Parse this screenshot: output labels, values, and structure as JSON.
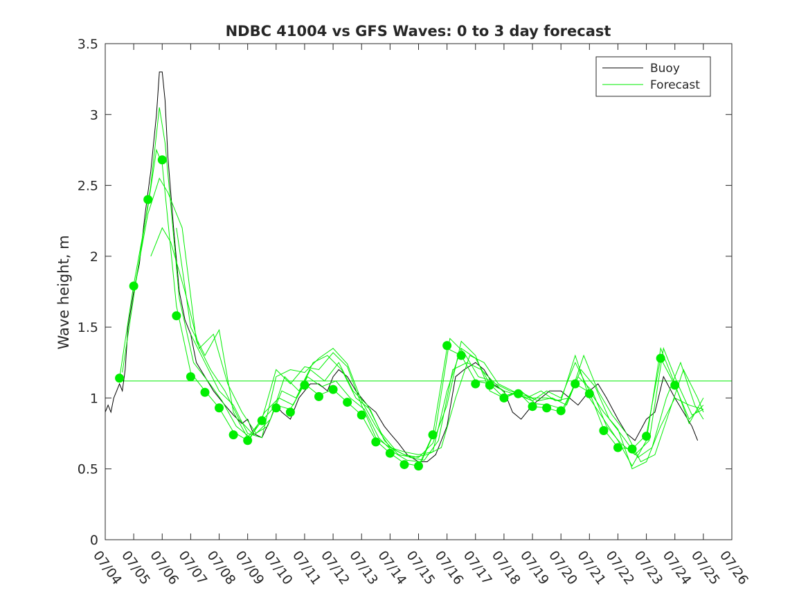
{
  "chart_data": {
    "type": "line",
    "title": "NDBC 41004 vs GFS Waves: 0 to 3 day forecast",
    "xlabel": "",
    "ylabel": "Wave height, m",
    "x_range": [
      "07/04",
      "07/26"
    ],
    "ylim": [
      0,
      3.5
    ],
    "yticks": [
      "0",
      "0.5",
      "1",
      "1.5",
      "2",
      "2.5",
      "3",
      "3.5"
    ],
    "xticks": [
      "07/04",
      "07/05",
      "07/06",
      "07/07",
      "07/08",
      "07/09",
      "07/10",
      "07/11",
      "07/12",
      "07/13",
      "07/14",
      "07/15",
      "07/16",
      "07/17",
      "07/18",
      "07/19",
      "07/20",
      "07/21",
      "07/22",
      "07/23",
      "07/24",
      "07/25",
      "07/26"
    ],
    "grid": false,
    "legend": {
      "position": "top-right",
      "entries": [
        "Buoy",
        "Forecast"
      ]
    },
    "colors": {
      "buoy": "#000000",
      "forecast": "#00ee00",
      "axes": "#262626"
    },
    "reference_line": {
      "y": 1.12,
      "color": "#00ee00"
    },
    "buoy": {
      "name": "Buoy",
      "x_days": [
        0,
        0.1,
        0.2,
        0.3,
        0.4,
        0.5,
        0.6,
        0.7,
        0.8,
        1.0,
        1.2,
        1.4,
        1.6,
        1.8,
        1.9,
        2.0,
        2.1,
        2.2,
        2.4,
        2.6,
        2.8,
        3.0,
        3.2,
        3.5,
        3.8,
        4.0,
        4.2,
        4.5,
        4.8,
        5.0,
        5.2,
        5.5,
        5.8,
        6.0,
        6.2,
        6.5,
        6.8,
        7.0,
        7.2,
        7.5,
        7.8,
        8.0,
        8.2,
        8.5,
        8.8,
        9.0,
        9.2,
        9.5,
        9.8,
        10.0,
        10.3,
        10.6,
        11.0,
        11.3,
        11.6,
        12.0,
        12.3,
        12.6,
        13.0,
        13.3,
        13.6,
        14.0,
        14.3,
        14.6,
        15.0,
        15.3,
        15.6,
        16.0,
        16.3,
        16.6,
        17.0,
        17.3,
        17.6,
        18.0,
        18.3,
        18.6,
        19.0,
        19.3,
        19.6,
        20.0,
        20.3,
        20.6,
        20.8
      ],
      "values": [
        0.9,
        0.95,
        0.9,
        1.0,
        1.05,
        1.1,
        1.05,
        1.2,
        1.5,
        1.75,
        1.95,
        2.3,
        2.6,
        3.0,
        3.3,
        3.3,
        3.1,
        2.7,
        2.2,
        1.75,
        1.55,
        1.45,
        1.25,
        1.15,
        1.05,
        1.0,
        0.95,
        0.88,
        0.82,
        0.85,
        0.75,
        0.72,
        0.85,
        0.95,
        0.9,
        0.85,
        1.0,
        1.05,
        1.1,
        1.1,
        1.05,
        1.15,
        1.2,
        1.15,
        1.05,
        1.0,
        0.95,
        0.9,
        0.8,
        0.75,
        0.68,
        0.6,
        0.55,
        0.55,
        0.6,
        0.8,
        1.15,
        1.2,
        1.25,
        1.2,
        1.1,
        1.05,
        0.9,
        0.85,
        0.95,
        1.0,
        1.05,
        1.05,
        1.0,
        0.95,
        1.05,
        1.1,
        1.0,
        0.85,
        0.75,
        0.7,
        0.85,
        0.9,
        1.15,
        1.0,
        0.9,
        0.8,
        0.7
      ]
    },
    "forecast": {
      "name": "Forecast",
      "points_x_days": [
        0.5,
        1.0,
        1.5,
        2.0,
        2.5,
        3.0,
        3.5,
        4.0,
        4.5,
        5.0,
        5.5,
        6.0,
        6.5,
        7.0,
        7.5,
        8.0,
        8.5,
        9.0,
        9.5,
        10.0,
        10.5,
        11.0,
        11.5,
        12.0,
        12.5,
        13.0,
        13.5,
        14.0,
        14.5,
        15.0,
        15.5,
        16.0,
        16.5,
        17.0,
        17.5,
        18.0,
        18.5,
        19.0,
        19.5,
        20.0
      ],
      "points": [
        1.14,
        1.79,
        2.4,
        2.68,
        1.58,
        1.15,
        1.04,
        0.93,
        0.74,
        0.7,
        0.84,
        0.93,
        0.9,
        1.09,
        1.01,
        1.06,
        0.97,
        0.88,
        0.69,
        0.61,
        0.53,
        0.52,
        0.74,
        1.37,
        1.3,
        1.1,
        1.09,
        1.0,
        1.03,
        0.94,
        0.93,
        0.91,
        1.1,
        1.03,
        0.77,
        0.65,
        0.64,
        0.73,
        1.28,
        1.09
      ],
      "runs": [
        {
          "x_days": [
            0.5,
            1.0,
            1.5,
            1.8,
            2.0,
            2.5,
            3.0,
            3.5,
            4.0,
            4.5,
            5.0,
            5.5,
            6.0,
            6.5,
            7.0,
            7.5,
            8.0,
            8.5,
            9.0,
            9.5,
            10.0,
            10.5,
            11.0,
            11.5,
            12.0,
            12.5,
            13.0,
            13.5,
            14.0,
            14.5,
            15.0,
            15.5,
            16.0,
            16.5,
            17.0,
            17.5,
            18.0,
            18.5,
            19.0,
            19.5,
            20.0,
            20.5,
            21.0
          ],
          "values": [
            1.14,
            1.8,
            2.35,
            2.75,
            2.65,
            1.65,
            1.18,
            1.05,
            0.93,
            0.76,
            0.7,
            0.84,
            0.95,
            0.92,
            1.1,
            1.02,
            1.06,
            0.97,
            0.88,
            0.7,
            0.61,
            0.54,
            0.52,
            0.74,
            1.35,
            1.3,
            1.12,
            1.1,
            1.0,
            1.04,
            0.94,
            0.93,
            0.9,
            1.1,
            1.04,
            0.78,
            0.65,
            0.64,
            0.74,
            1.28,
            1.09,
            0.85,
            0.95
          ]
        },
        {
          "x_days": [
            0.6,
            1.1,
            1.6,
            1.9,
            2.1,
            2.6,
            3.1,
            3.6,
            4.1,
            4.6,
            5.1,
            5.6,
            6.1,
            6.6,
            7.1,
            7.6,
            8.1,
            8.6,
            9.1,
            9.6,
            10.1,
            10.6,
            11.1,
            11.6,
            12.1,
            12.6,
            13.1,
            13.6,
            14.1,
            14.6,
            15.1,
            15.6,
            16.1,
            16.6,
            17.1,
            17.6,
            18.1,
            18.6,
            19.1,
            19.6,
            20.1,
            20.6,
            21.0
          ],
          "values": [
            1.18,
            1.85,
            2.5,
            3.05,
            2.8,
            1.7,
            1.25,
            1.12,
            0.98,
            0.8,
            0.72,
            0.9,
            1.0,
            0.95,
            1.15,
            1.08,
            1.12,
            1.0,
            0.92,
            0.72,
            0.62,
            0.56,
            0.55,
            0.78,
            1.42,
            1.32,
            1.15,
            1.12,
            1.02,
            1.05,
            0.96,
            0.95,
            0.92,
            1.15,
            1.05,
            0.8,
            0.68,
            0.6,
            0.7,
            1.35,
            1.1,
            0.88,
            0.92
          ]
        },
        {
          "x_days": [
            1.0,
            1.5,
            1.9,
            2.2,
            2.7,
            3.2,
            3.7,
            4.2,
            4.7,
            5.2,
            5.7,
            6.2,
            6.7,
            7.2,
            7.7,
            8.2,
            8.7,
            9.2,
            9.7,
            10.2,
            10.7,
            11.2,
            11.7,
            12.2,
            12.7,
            13.2,
            13.7,
            14.2,
            14.7,
            15.2,
            15.7,
            16.2,
            16.7,
            17.2,
            17.7,
            18.2,
            18.7,
            19.2,
            19.7,
            20.2,
            20.7,
            21.0
          ],
          "values": [
            1.75,
            2.3,
            2.55,
            2.45,
            2.2,
            1.4,
            1.2,
            1.05,
            0.85,
            0.74,
            0.8,
            1.05,
            1.0,
            1.2,
            1.12,
            1.25,
            1.05,
            0.95,
            0.75,
            0.63,
            0.58,
            0.56,
            0.7,
            1.2,
            1.25,
            1.2,
            1.1,
            1.05,
            1.02,
            0.98,
            1.0,
            0.95,
            1.2,
            1.08,
            0.85,
            0.72,
            0.58,
            0.65,
            1.0,
            1.25,
            0.95,
            0.85
          ]
        },
        {
          "x_days": [
            1.6,
            2.0,
            2.3,
            2.8,
            3.3,
            3.8,
            4.3,
            4.8,
            5.3,
            5.8,
            6.3,
            6.8,
            7.3,
            7.8,
            8.3,
            8.8,
            9.3,
            9.8,
            10.3,
            10.8,
            11.3,
            11.8,
            12.3,
            12.8,
            13.3,
            13.8,
            14.3,
            14.8,
            15.3,
            15.8,
            16.3,
            16.8,
            17.3,
            17.8,
            18.3,
            18.8,
            19.3,
            19.8,
            20.3,
            20.8,
            21.0
          ],
          "values": [
            2.0,
            2.2,
            2.1,
            1.75,
            1.35,
            1.45,
            1.1,
            0.9,
            0.75,
            0.85,
            1.15,
            1.05,
            1.25,
            1.3,
            1.2,
            1.0,
            0.92,
            0.7,
            0.6,
            0.58,
            0.6,
            0.65,
            1.0,
            1.3,
            1.25,
            1.1,
            1.05,
            1.0,
            1.05,
            0.98,
            1.0,
            1.3,
            1.05,
            0.88,
            0.75,
            0.55,
            0.6,
            0.9,
            1.2,
            1.0,
            0.9
          ]
        },
        {
          "x_days": [
            2.5,
            3.0,
            3.5,
            4.0,
            4.5,
            5.0,
            5.5,
            6.0,
            6.5,
            7.0,
            7.5,
            8.0,
            8.5,
            9.0,
            9.5,
            10.0,
            10.5,
            11.0,
            11.5,
            12.0,
            12.5,
            13.0,
            13.5,
            14.0,
            14.5,
            15.0,
            15.5,
            16.0,
            16.5,
            17.0,
            17.5,
            18.0,
            18.5,
            19.0,
            19.5,
            20.0,
            20.5,
            21.0
          ],
          "values": [
            2.2,
            1.5,
            1.3,
            1.48,
            0.9,
            0.72,
            0.85,
            1.2,
            1.1,
            1.22,
            1.2,
            1.32,
            1.22,
            0.95,
            0.72,
            0.65,
            0.62,
            0.6,
            0.62,
            1.05,
            1.35,
            1.28,
            1.1,
            1.05,
            1.02,
            0.98,
            1.05,
            1.0,
            1.25,
            1.05,
            0.9,
            0.78,
            0.5,
            0.55,
            0.8,
            1.0,
            0.95,
            0.92
          ]
        },
        {
          "x_days": [
            3.0,
            3.5,
            4.0,
            4.5,
            5.0,
            5.5,
            6.0,
            6.5,
            7.0,
            7.5,
            8.0,
            8.5,
            9.0,
            9.5,
            10.0,
            10.5,
            11.0,
            11.5,
            12.0,
            12.5,
            13.0,
            13.5,
            14.0,
            14.5,
            15.0,
            15.5,
            16.0,
            16.5,
            17.0,
            17.5,
            18.0,
            18.5,
            19.0,
            19.5,
            20.0,
            20.5,
            21.0
          ],
          "values": [
            1.45,
            1.25,
            1.05,
            0.95,
            0.75,
            0.72,
            1.15,
            1.2,
            1.18,
            1.28,
            1.35,
            1.24,
            0.98,
            0.8,
            0.65,
            0.6,
            0.58,
            0.68,
            0.95,
            1.4,
            1.3,
            1.05,
            1.0,
            1.05,
            1.0,
            1.0,
            0.98,
            1.3,
            1.0,
            0.85,
            0.7,
            0.52,
            0.7,
            1.35,
            1.1,
            0.82,
            1.0
          ]
        }
      ]
    }
  }
}
